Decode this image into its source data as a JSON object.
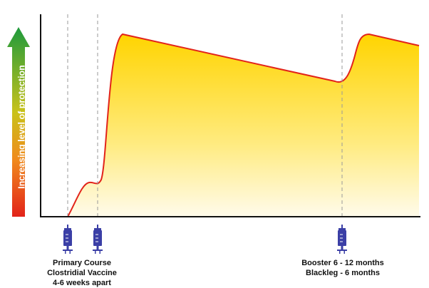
{
  "y_axis_label": "Increasing level of protection",
  "annotations": {
    "primary": [
      "Primary Course",
      "Clostridial Vaccine",
      "4-6 weeks apart"
    ],
    "booster": [
      "Booster 6 - 12 months",
      "Blackleg - 6 months"
    ]
  }
}
